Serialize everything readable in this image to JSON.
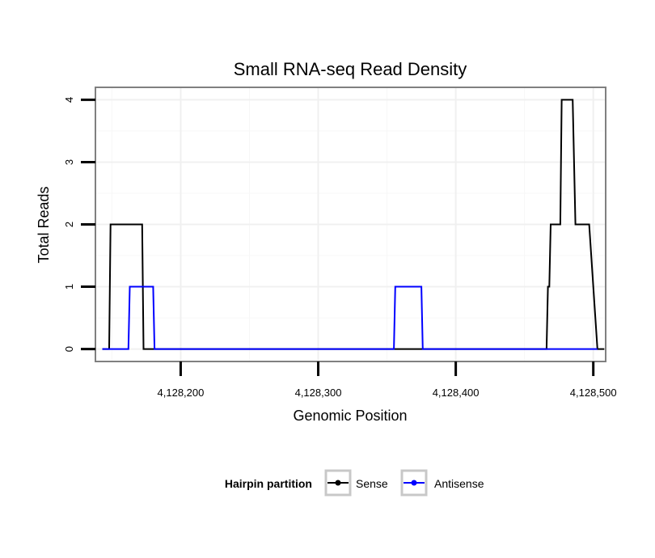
{
  "chart_data": {
    "type": "line",
    "title": "Small RNA-seq Read Density",
    "xlabel": "Genomic Position",
    "ylabel": "Total Reads",
    "xlim": [
      4128138,
      4128509
    ],
    "ylim": [
      -0.2,
      4.2
    ],
    "x_ticks": [
      4128200,
      4128300,
      4128400,
      4128500
    ],
    "x_tick_labels": [
      "4,128,200",
      "4,128,300",
      "4,128,400",
      "4,128,500"
    ],
    "y_ticks": [
      0,
      1,
      2,
      3,
      4
    ],
    "y_tick_labels": [
      "0",
      "1",
      "2",
      "3",
      "4"
    ],
    "grid": true,
    "legend": {
      "title": "Hairpin partition",
      "position": "bottom",
      "entries": [
        "Sense",
        "Antisense"
      ]
    },
    "series": [
      {
        "name": "Sense",
        "color": "#000000",
        "x": [
          4128143,
          4128148,
          4128149,
          4128172,
          4128173,
          4128466,
          4128467,
          4128468,
          4128469,
          4128476,
          4128477,
          4128485,
          4128486,
          4128487,
          4128496,
          4128497,
          4128503,
          4128508
        ],
        "y": [
          0,
          0,
          2,
          2,
          0,
          0,
          1,
          1,
          2,
          2,
          4,
          4,
          3,
          2,
          2,
          2,
          0,
          0
        ]
      },
      {
        "name": "Antisense",
        "color": "#0000ff",
        "x": [
          4128143,
          4128162,
          4128163,
          4128180,
          4128181,
          4128355,
          4128356,
          4128375,
          4128376,
          4128503
        ],
        "y": [
          0,
          0,
          1,
          1,
          0,
          0,
          1,
          1,
          0,
          0
        ]
      }
    ]
  }
}
